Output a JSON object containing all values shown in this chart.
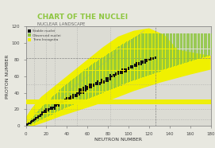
{
  "title": "CHART OF THE NUCLEI",
  "subtitle": "NUCLEAR LANDSCAPE",
  "xlabel": "NEUTRON NUMBER",
  "ylabel": "PROTON NUMBER",
  "xlim": [
    0,
    180
  ],
  "ylim": [
    0,
    120
  ],
  "xticks": [
    0,
    20,
    40,
    60,
    80,
    100,
    120,
    140,
    160,
    180
  ],
  "yticks": [
    0,
    20,
    40,
    60,
    80,
    100,
    120
  ],
  "title_color": "#8dc63f",
  "subtitle_color": "#666666",
  "bg_color": "#e8e8e0",
  "plot_bg": "#dcdcd4",
  "stable_color": "#111111",
  "observed_color": "#8dc63f",
  "terra_color": "#f0f000",
  "magic_color": "#999999",
  "magic_numbers_n": [
    8,
    20,
    28,
    50,
    82,
    126
  ],
  "magic_numbers_z": [
    8,
    20,
    28,
    50,
    82
  ],
  "terra_poly": [
    [
      0,
      0
    ],
    [
      8,
      0
    ],
    [
      20,
      5
    ],
    [
      35,
      12
    ],
    [
      55,
      20
    ],
    [
      80,
      30
    ],
    [
      105,
      42
    ],
    [
      130,
      52
    ],
    [
      160,
      62
    ],
    [
      180,
      68
    ],
    [
      180,
      85
    ],
    [
      165,
      88
    ],
    [
      148,
      92
    ],
    [
      135,
      110
    ],
    [
      120,
      118
    ],
    [
      105,
      115
    ],
    [
      90,
      108
    ],
    [
      75,
      95
    ],
    [
      60,
      80
    ],
    [
      45,
      65
    ],
    [
      30,
      50
    ],
    [
      15,
      35
    ],
    [
      5,
      20
    ],
    [
      0,
      10
    ]
  ],
  "obs_spread_inner": 0.72,
  "obs_spread_outer": 1.45,
  "zmax_obs": 112
}
